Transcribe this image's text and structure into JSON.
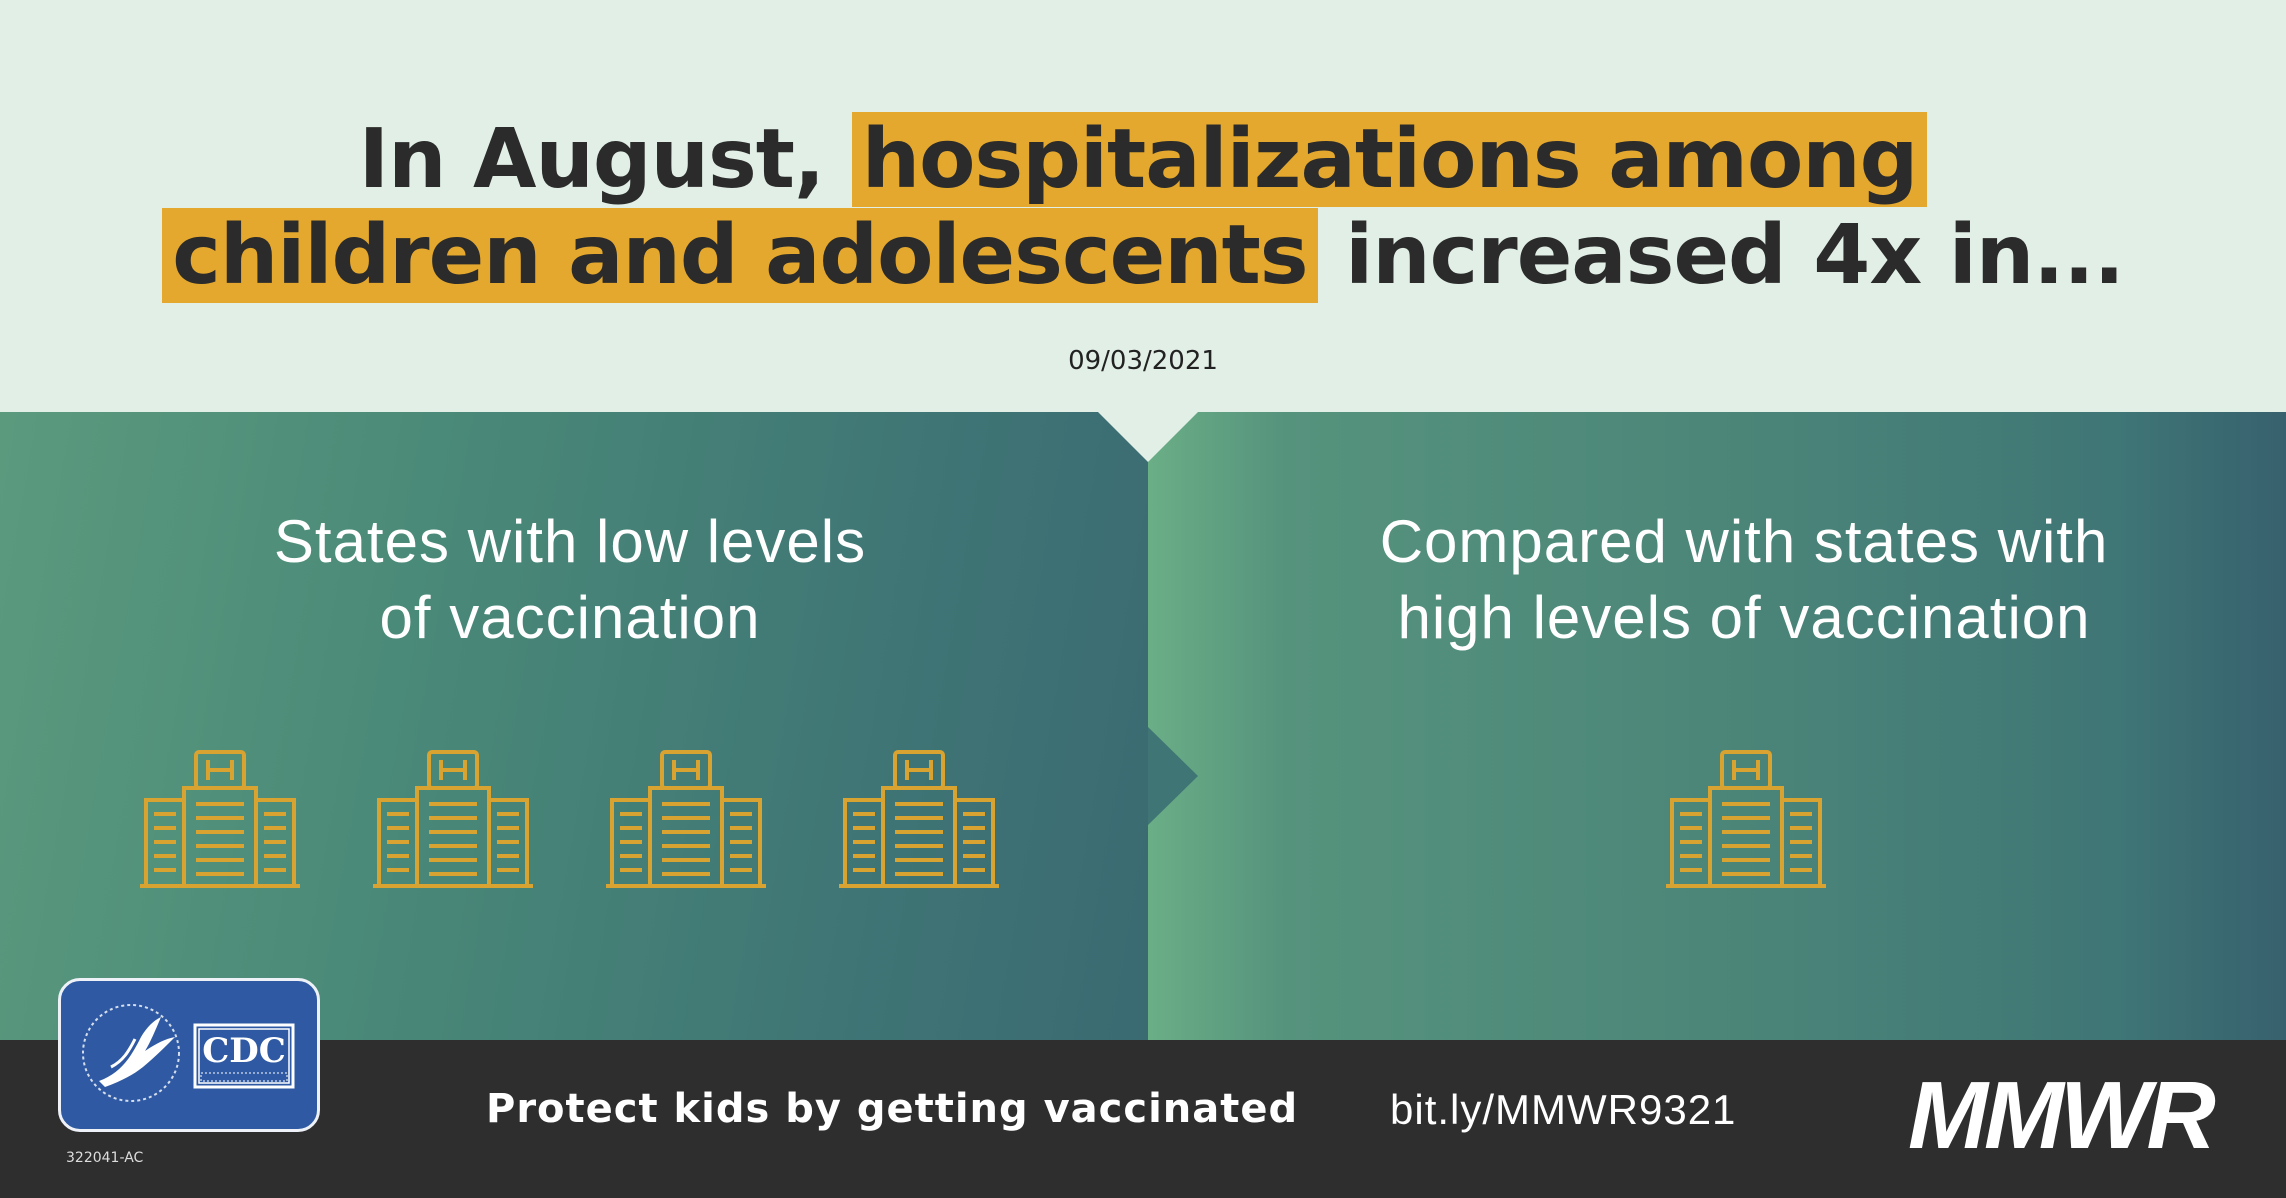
{
  "headline": {
    "prefix": "In August,",
    "highlight_1": "hospitalizations among",
    "highlight_2": "children and adolescents",
    "suffix": "increased 4x in..."
  },
  "date": "09/03/2021",
  "left_panel": {
    "title_line1": "States with low levels",
    "title_line2": "of vaccination",
    "hospital_count": 4
  },
  "right_panel": {
    "title_line1": "Compared with states with",
    "title_line2": "high levels of vaccination",
    "hospital_count": 1
  },
  "icons": {
    "hospital": "hospital-building-icon",
    "agency_logo": "cdc-logo"
  },
  "logo_text": "CDC",
  "footer": {
    "tagline": "Protect kids by getting vaccinated",
    "url": "bit.ly/MMWR9321",
    "brand": "MMWR",
    "code": "322041-AC"
  },
  "colors": {
    "highlight": "#e4a82e",
    "header_bg": "#e1efe6",
    "icon_gold": "#d8a331",
    "footer_bg": "#2e2e2e",
    "logo_blue": "#2f5aa3"
  }
}
